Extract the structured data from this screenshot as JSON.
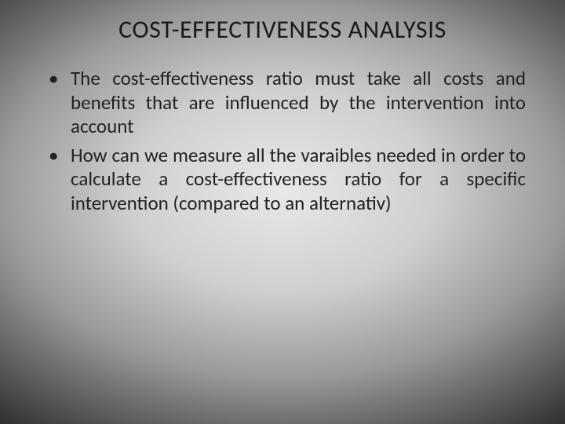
{
  "slide": {
    "title": "COST-EFFECTIVENESS ANALYSIS",
    "bullets": [
      "The cost-effectiveness ratio must take all costs and benefits that are influenced by the intervention into account",
      "How can we measure all the varaibles needed in order to calculate a cost-effectiveness ratio for a specific intervention (compared to an alternativ)"
    ],
    "style": {
      "title_fontsize": 32,
      "body_fontsize": 25,
      "text_color": "#222222",
      "background_gradient_center": "#e8e8e8",
      "background_gradient_edge": "#0a0a0a",
      "font_family": "Calibri"
    }
  }
}
